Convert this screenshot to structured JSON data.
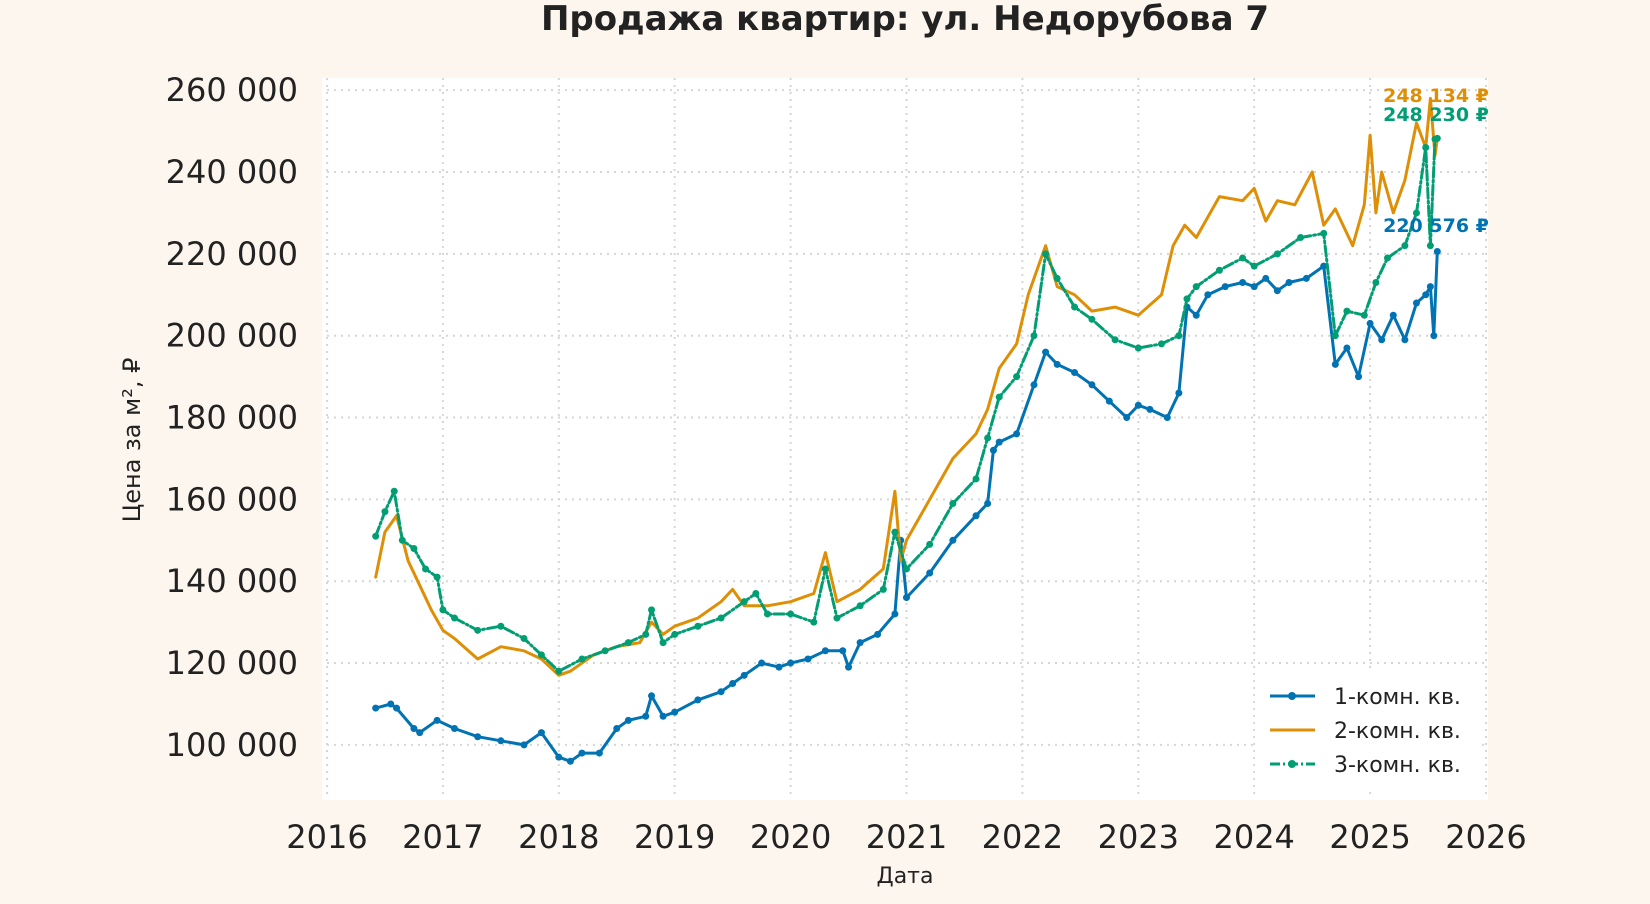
{
  "chart_data": {
    "type": "line",
    "title": "Продажа квартир: ул. Недорубова 7",
    "xlabel": "Дата",
    "ylabel": "Цена за м², ₽",
    "xlim": [
      2016,
      2026
    ],
    "ylim": [
      88000,
      262000
    ],
    "x_ticks": [
      2016,
      2017,
      2018,
      2019,
      2020,
      2021,
      2022,
      2023,
      2024,
      2025,
      2026
    ],
    "x_tick_labels": [
      "2016",
      "2017",
      "2018",
      "2019",
      "2020",
      "2021",
      "2022",
      "2023",
      "2024",
      "2025",
      "2026"
    ],
    "y_ticks": [
      100000,
      120000,
      140000,
      160000,
      180000,
      200000,
      220000,
      240000,
      260000
    ],
    "y_tick_labels": [
      "100 000",
      "120 000",
      "140 000",
      "160 000",
      "180 000",
      "200 000",
      "220 000",
      "240 000",
      "260 000"
    ],
    "grid": true,
    "legend_position": "bottom-right",
    "series": [
      {
        "name": "1-комн. кв.",
        "color": "#0173b2",
        "end_label": "220 576 ₽",
        "x": [
          2016.42,
          2016.55,
          2016.6,
          2016.75,
          2016.8,
          2016.95,
          2017.1,
          2017.3,
          2017.5,
          2017.7,
          2017.85,
          2018.0,
          2018.1,
          2018.2,
          2018.35,
          2018.5,
          2018.6,
          2018.75,
          2018.8,
          2018.9,
          2019.0,
          2019.2,
          2019.4,
          2019.5,
          2019.6,
          2019.75,
          2019.9,
          2020.0,
          2020.15,
          2020.3,
          2020.45,
          2020.5,
          2020.6,
          2020.75,
          2020.9,
          2020.95,
          2021.0,
          2021.2,
          2021.4,
          2021.6,
          2021.7,
          2021.75,
          2021.8,
          2021.95,
          2022.1,
          2022.2,
          2022.3,
          2022.45,
          2022.6,
          2022.75,
          2022.9,
          2023.0,
          2023.1,
          2023.25,
          2023.35,
          2023.42,
          2023.5,
          2023.6,
          2023.75,
          2023.9,
          2024.0,
          2024.1,
          2024.2,
          2024.3,
          2024.45,
          2024.6,
          2024.7,
          2024.8,
          2024.9,
          2025.0,
          2025.1,
          2025.2,
          2025.3,
          2025.4,
          2025.48,
          2025.52,
          2025.55,
          2025.58
        ],
        "y": [
          109000,
          110000,
          109000,
          104000,
          103000,
          106000,
          104000,
          102000,
          101000,
          100000,
          103000,
          97000,
          96000,
          98000,
          98000,
          104000,
          106000,
          107000,
          112000,
          107000,
          108000,
          111000,
          113000,
          115000,
          117000,
          120000,
          119000,
          120000,
          121000,
          123000,
          123000,
          119000,
          125000,
          127000,
          132000,
          150000,
          136000,
          142000,
          150000,
          156000,
          159000,
          172000,
          174000,
          176000,
          188000,
          196000,
          193000,
          191000,
          188000,
          184000,
          180000,
          183000,
          182000,
          180000,
          186000,
          207000,
          205000,
          210000,
          212000,
          213000,
          212000,
          214000,
          211000,
          213000,
          214000,
          217000,
          193000,
          197000,
          190000,
          203000,
          199000,
          205000,
          199000,
          208000,
          210000,
          212000,
          200000,
          220576
        ]
      },
      {
        "name": "2-комн. кв.",
        "color": "#de8f05",
        "end_label": "248 134 ₽",
        "x": [
          2016.42,
          2016.5,
          2016.6,
          2016.7,
          2016.8,
          2016.9,
          2017.0,
          2017.1,
          2017.3,
          2017.5,
          2017.7,
          2017.85,
          2018.0,
          2018.1,
          2018.3,
          2018.5,
          2018.7,
          2018.8,
          2018.9,
          2019.0,
          2019.2,
          2019.4,
          2019.5,
          2019.6,
          2019.8,
          2020.0,
          2020.2,
          2020.3,
          2020.4,
          2020.6,
          2020.8,
          2020.9,
          2020.95,
          2021.0,
          2021.2,
          2021.4,
          2021.6,
          2021.7,
          2021.8,
          2021.95,
          2022.05,
          2022.2,
          2022.3,
          2022.45,
          2022.6,
          2022.8,
          2023.0,
          2023.2,
          2023.3,
          2023.4,
          2023.5,
          2023.7,
          2023.9,
          2024.0,
          2024.1,
          2024.2,
          2024.35,
          2024.5,
          2024.6,
          2024.7,
          2024.85,
          2024.95,
          2025.0,
          2025.05,
          2025.1,
          2025.2,
          2025.3,
          2025.4,
          2025.48,
          2025.52,
          2025.56,
          2025.58
        ],
        "y": [
          141000,
          152000,
          156000,
          145000,
          139000,
          133000,
          128000,
          126000,
          121000,
          124000,
          123000,
          121000,
          117000,
          118000,
          122000,
          124000,
          125000,
          130000,
          127000,
          129000,
          131000,
          135000,
          138000,
          134000,
          134000,
          135000,
          137000,
          147000,
          135000,
          138000,
          143000,
          162000,
          145000,
          150000,
          160000,
          170000,
          176000,
          182000,
          192000,
          198000,
          210000,
          222000,
          212000,
          210000,
          206000,
          207000,
          205000,
          210000,
          222000,
          227000,
          224000,
          234000,
          233000,
          236000,
          228000,
          233000,
          232000,
          240000,
          227000,
          231000,
          222000,
          232000,
          249000,
          230000,
          240000,
          230000,
          238000,
          252000,
          246000,
          258000,
          244000,
          248134
        ]
      },
      {
        "name": "3-комн. кв.",
        "color": "#029e73",
        "end_label": "248 230 ₽",
        "x": [
          2016.42,
          2016.5,
          2016.58,
          2016.65,
          2016.75,
          2016.85,
          2016.95,
          2017.0,
          2017.1,
          2017.3,
          2017.5,
          2017.7,
          2017.85,
          2018.0,
          2018.2,
          2018.4,
          2018.6,
          2018.75,
          2018.8,
          2018.9,
          2019.0,
          2019.2,
          2019.4,
          2019.6,
          2019.7,
          2019.8,
          2020.0,
          2020.2,
          2020.3,
          2020.4,
          2020.6,
          2020.8,
          2020.9,
          2021.0,
          2021.2,
          2021.4,
          2021.6,
          2021.7,
          2021.8,
          2021.95,
          2022.1,
          2022.2,
          2022.3,
          2022.45,
          2022.6,
          2022.8,
          2023.0,
          2023.2,
          2023.35,
          2023.42,
          2023.5,
          2023.7,
          2023.9,
          2024.0,
          2024.2,
          2024.4,
          2024.6,
          2024.7,
          2024.8,
          2024.95,
          2025.05,
          2025.15,
          2025.3,
          2025.4,
          2025.48,
          2025.52,
          2025.56,
          2025.58
        ],
        "y": [
          151000,
          157000,
          162000,
          150000,
          148000,
          143000,
          141000,
          133000,
          131000,
          128000,
          129000,
          126000,
          122000,
          118000,
          121000,
          123000,
          125000,
          127000,
          133000,
          125000,
          127000,
          129000,
          131000,
          135000,
          137000,
          132000,
          132000,
          130000,
          143000,
          131000,
          134000,
          138000,
          152000,
          143000,
          149000,
          159000,
          165000,
          175000,
          185000,
          190000,
          200000,
          220000,
          214000,
          207000,
          204000,
          199000,
          197000,
          198000,
          200000,
          209000,
          212000,
          216000,
          219000,
          217000,
          220000,
          224000,
          225000,
          200000,
          206000,
          205000,
          213000,
          219000,
          222000,
          230000,
          246000,
          222000,
          248000,
          248230
        ]
      }
    ]
  }
}
